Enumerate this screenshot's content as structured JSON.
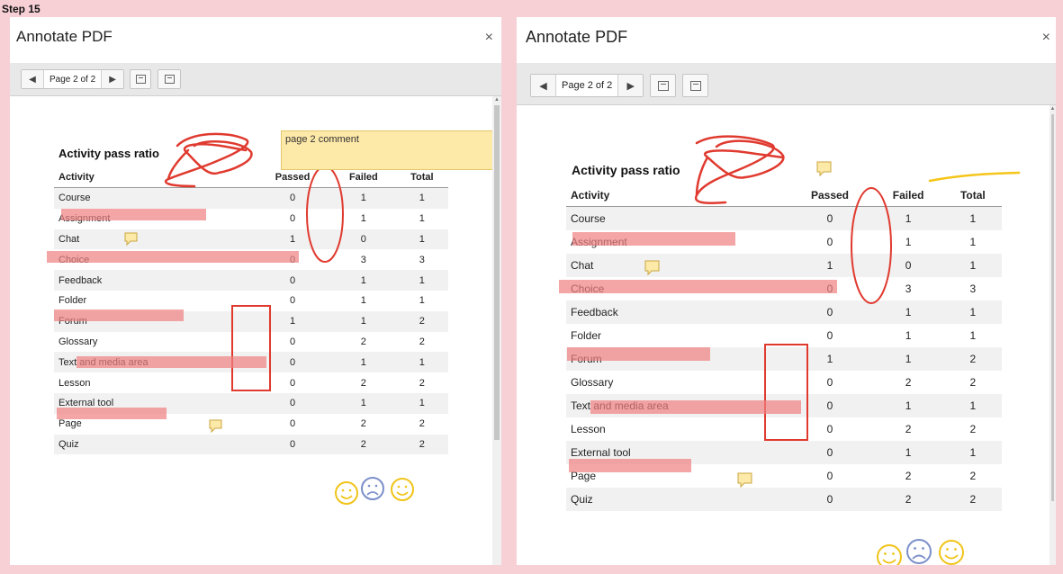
{
  "step_label": "Step 15",
  "dialog": {
    "title": "Annotate PDF",
    "close_glyph": "×",
    "prev_glyph": "◀",
    "next_glyph": "▶",
    "page_indicator": "Page 2 of 2"
  },
  "sticky_note_text": "page 2 comment",
  "doc": {
    "title": "Activity pass ratio",
    "columns": [
      "Activity",
      "Passed",
      "Failed",
      "Total"
    ],
    "rows": [
      [
        "Course",
        "0",
        "1",
        "1"
      ],
      [
        "Assignment",
        "0",
        "1",
        "1"
      ],
      [
        "Chat",
        "1",
        "0",
        "1"
      ],
      [
        "Choice",
        "0",
        "3",
        "3"
      ],
      [
        "Feedback",
        "0",
        "1",
        "1"
      ],
      [
        "Folder",
        "0",
        "1",
        "1"
      ],
      [
        "Forum",
        "1",
        "1",
        "2"
      ],
      [
        "Glossary",
        "0",
        "2",
        "2"
      ],
      [
        "Text and media area",
        "0",
        "1",
        "1"
      ],
      [
        "Lesson",
        "0",
        "2",
        "2"
      ],
      [
        "External tool",
        "0",
        "1",
        "1"
      ],
      [
        "Page",
        "0",
        "2",
        "2"
      ],
      [
        "Quiz",
        "0",
        "2",
        "2"
      ]
    ]
  },
  "icons": {
    "close": "close-icon",
    "prev": "arrow-left-icon",
    "next": "arrow-right-icon",
    "fit_page": "fit-page-icon",
    "fit_width": "fit-width-icon",
    "comment": "comment-icon",
    "smiley": "smiley-icon",
    "frown": "frown-icon"
  },
  "colors": {
    "background": "#f7d0d6",
    "pen_red": "#e03a2f",
    "highlight": "#f08080",
    "sticky_note": "#fde9a8",
    "yellow_line": "#f5c518",
    "smiley_yellow": "#f0c419",
    "frown_blue": "#7b8fc9"
  }
}
